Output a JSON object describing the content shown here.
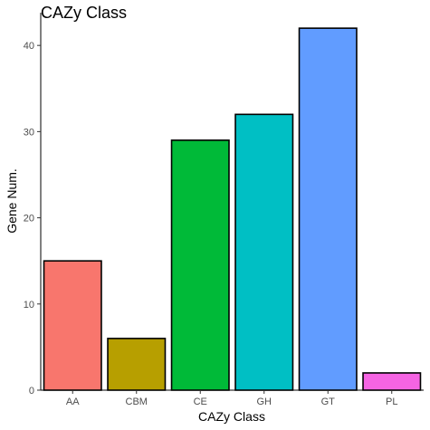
{
  "chart_data": {
    "type": "bar",
    "title": "CAZy Class",
    "xlabel": "CAZy Class",
    "ylabel": "Gene Num.",
    "categories": [
      "AA",
      "CBM",
      "CE",
      "GH",
      "GT",
      "PL"
    ],
    "values": [
      15,
      6,
      29,
      32,
      42,
      2
    ],
    "colors": [
      "#F8766D",
      "#B79F00",
      "#00BA38",
      "#00BFC4",
      "#619CFF",
      "#F564E3"
    ],
    "ylim": [
      0,
      43.8
    ],
    "yticks": [
      0,
      10,
      20,
      30,
      40
    ],
    "grid": false,
    "legend": "none"
  }
}
